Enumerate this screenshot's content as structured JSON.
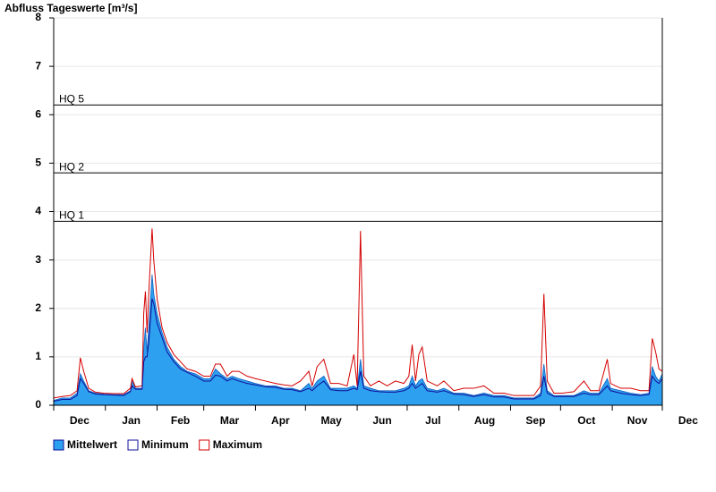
{
  "chart_data": {
    "type": "area",
    "title": "Abfluss Tageswerte [m³/s]",
    "xlim": [
      0,
      365
    ],
    "xticks": [
      {
        "value": 15.5,
        "label": "Dec"
      },
      {
        "value": 46.5,
        "label": "Jan"
      },
      {
        "value": 76,
        "label": "Feb"
      },
      {
        "value": 105.5,
        "label": "Mar"
      },
      {
        "value": 136,
        "label": "Apr"
      },
      {
        "value": 166.5,
        "label": "May"
      },
      {
        "value": 197,
        "label": "Jun"
      },
      {
        "value": 227.5,
        "label": "Jul"
      },
      {
        "value": 258.5,
        "label": "Aug"
      },
      {
        "value": 289,
        "label": "Sep"
      },
      {
        "value": 319.5,
        "label": "Oct"
      },
      {
        "value": 350,
        "label": "Nov"
      },
      {
        "value": 380.5,
        "label": "Dec"
      }
    ],
    "x_minor_ticks": [
      0,
      31,
      62,
      90,
      121,
      151,
      182,
      212,
      243,
      274,
      304,
      335,
      365
    ],
    "ylim": [
      0,
      8
    ],
    "yticks": [
      0,
      1,
      2,
      3,
      4,
      5,
      6,
      7,
      8
    ],
    "grid": true,
    "thresholds": [
      {
        "label": "HQ 1",
        "value": 3.8
      },
      {
        "label": "HQ 2",
        "value": 4.8
      },
      {
        "label": "HQ 5",
        "value": 6.2
      }
    ],
    "x": [
      0,
      5,
      10,
      14,
      16,
      18,
      21,
      25,
      30,
      36,
      42,
      46,
      47,
      49,
      53,
      54,
      55,
      56,
      57,
      59,
      60,
      62,
      65,
      68,
      72,
      76,
      80,
      85,
      90,
      94,
      97,
      100,
      104,
      107,
      111,
      116,
      121,
      127,
      133,
      138,
      143,
      148,
      153,
      155,
      158,
      162,
      166,
      171,
      176,
      180,
      182,
      184,
      186,
      190,
      195,
      200,
      205,
      210,
      213,
      215,
      217,
      219,
      221,
      224,
      230,
      234,
      240,
      246,
      252,
      258,
      264,
      270,
      276,
      282,
      288,
      292,
      294,
      296,
      300,
      305,
      312,
      318,
      322,
      327,
      332,
      334,
      340,
      346,
      352,
      357,
      359,
      361,
      363,
      365
    ],
    "series": [
      {
        "name": "Mittelwert",
        "color": "#2ea0f0",
        "values": [
          0.1,
          0.15,
          0.15,
          0.25,
          0.65,
          0.5,
          0.3,
          0.25,
          0.23,
          0.22,
          0.22,
          0.3,
          0.5,
          0.35,
          0.35,
          1.2,
          1.6,
          1.1,
          1.6,
          2.7,
          2.3,
          1.9,
          1.5,
          1.2,
          0.95,
          0.8,
          0.7,
          0.65,
          0.55,
          0.55,
          0.75,
          0.65,
          0.55,
          0.6,
          0.55,
          0.5,
          0.45,
          0.4,
          0.4,
          0.35,
          0.35,
          0.3,
          0.45,
          0.35,
          0.5,
          0.6,
          0.35,
          0.35,
          0.35,
          0.4,
          0.35,
          0.95,
          0.4,
          0.35,
          0.3,
          0.3,
          0.3,
          0.35,
          0.4,
          0.6,
          0.4,
          0.5,
          0.55,
          0.35,
          0.3,
          0.35,
          0.25,
          0.25,
          0.2,
          0.25,
          0.2,
          0.2,
          0.15,
          0.15,
          0.15,
          0.25,
          0.85,
          0.3,
          0.2,
          0.2,
          0.2,
          0.3,
          0.25,
          0.25,
          0.55,
          0.35,
          0.3,
          0.25,
          0.22,
          0.25,
          0.8,
          0.6,
          0.5,
          0.65
        ]
      },
      {
        "name": "Minimum",
        "color": "#10109a",
        "values": [
          0.08,
          0.12,
          0.12,
          0.2,
          0.55,
          0.45,
          0.28,
          0.23,
          0.22,
          0.21,
          0.2,
          0.28,
          0.4,
          0.33,
          0.33,
          0.9,
          1.0,
          1.0,
          1.3,
          2.2,
          2.1,
          1.7,
          1.4,
          1.1,
          0.9,
          0.75,
          0.68,
          0.6,
          0.5,
          0.5,
          0.62,
          0.6,
          0.5,
          0.55,
          0.5,
          0.45,
          0.42,
          0.38,
          0.37,
          0.33,
          0.32,
          0.28,
          0.35,
          0.3,
          0.4,
          0.5,
          0.32,
          0.3,
          0.3,
          0.35,
          0.32,
          0.7,
          0.35,
          0.3,
          0.28,
          0.27,
          0.27,
          0.3,
          0.35,
          0.45,
          0.35,
          0.4,
          0.45,
          0.3,
          0.27,
          0.3,
          0.23,
          0.22,
          0.18,
          0.22,
          0.17,
          0.17,
          0.13,
          0.13,
          0.13,
          0.2,
          0.6,
          0.25,
          0.18,
          0.18,
          0.18,
          0.25,
          0.22,
          0.22,
          0.4,
          0.3,
          0.25,
          0.22,
          0.2,
          0.22,
          0.6,
          0.5,
          0.45,
          0.55
        ]
      },
      {
        "name": "Maximum",
        "color": "#d40000",
        "values": [
          0.15,
          0.18,
          0.2,
          0.3,
          0.98,
          0.7,
          0.35,
          0.27,
          0.25,
          0.24,
          0.24,
          0.35,
          0.55,
          0.38,
          0.4,
          1.9,
          2.35,
          1.5,
          2.3,
          3.65,
          3.0,
          2.2,
          1.6,
          1.3,
          1.05,
          0.9,
          0.75,
          0.7,
          0.6,
          0.6,
          0.85,
          0.85,
          0.6,
          0.7,
          0.7,
          0.6,
          0.55,
          0.5,
          0.45,
          0.42,
          0.4,
          0.5,
          0.7,
          0.4,
          0.8,
          0.95,
          0.45,
          0.45,
          0.4,
          1.05,
          0.4,
          3.6,
          0.6,
          0.4,
          0.5,
          0.4,
          0.5,
          0.45,
          0.6,
          1.25,
          0.5,
          1.05,
          1.2,
          0.5,
          0.4,
          0.5,
          0.3,
          0.35,
          0.35,
          0.4,
          0.25,
          0.25,
          0.2,
          0.2,
          0.2,
          0.4,
          2.3,
          0.5,
          0.25,
          0.25,
          0.28,
          0.5,
          0.3,
          0.3,
          0.95,
          0.45,
          0.35,
          0.35,
          0.3,
          0.3,
          1.38,
          1.1,
          0.75,
          0.7
        ]
      }
    ]
  }
}
